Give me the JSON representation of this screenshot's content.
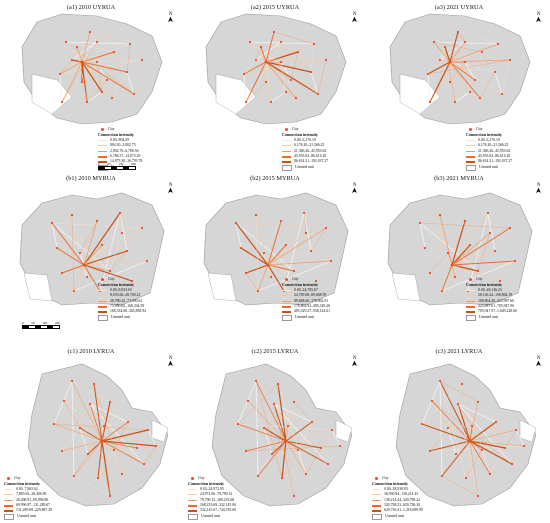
{
  "colors": {
    "region_fill": "#d6d6d6",
    "region_stroke": "#9a9a9a",
    "white_area": "#ffffff",
    "city_dot": "#e94f1f",
    "level1": "#fde6d0",
    "level2": "#fbc79b",
    "level3": "#f79a5c",
    "level4": "#ee6b2c",
    "level5": "#c94f12"
  },
  "icons": {
    "north_arrow": "north-arrow-icon",
    "city": "city-dot-icon"
  },
  "common": {
    "north_label": "N",
    "city_label": "City",
    "legend_title": "Connection intensity",
    "unrated_label": "Unrated unit"
  },
  "panels": [
    {
      "title": "(a1) 2010  UYRUA",
      "style": "upper",
      "legend": [
        "0.00–804.29",
        "804.30–2,802.75",
        "2,802.76–6,786.56",
        "6,786.57–14,073.29",
        "14,073.30–36,793.78"
      ],
      "scale_ticks": [
        "0",
        "65",
        "130",
        "260"
      ]
    },
    {
      "title": "(a2) 2015  UYRUA",
      "style": "upper",
      "legend": [
        "0.00–6,176.19",
        "6,176.20–21,366.25",
        "21,366.26–45,953.62",
        "45,953.63–86,614.20",
        "86,614.21–192,037.27"
      ]
    },
    {
      "title": "(a3) 2021  UYRUA",
      "style": "upper",
      "legend": [
        "0.00–6,176.19",
        "6,176.20–21,366.25",
        "21,366.26–45,953.62",
        "45,953.63–86,614.20",
        "86,614.21–192,037.27"
      ]
    },
    {
      "title": "(b1) 2010  MYRUA",
      "style": "middle",
      "legend": [
        "0.00–8,033.65",
        "8,033.66–28,780.21",
        "28,780.22–73,990.61",
        "73,990.62–168,334.59",
        "168,334.60–365,858.92"
      ],
      "scale_ticks": [
        "0",
        "50",
        "100",
        "200"
      ]
    },
    {
      "title": "(b2) 2015  MYRUA",
      "style": "middle",
      "legend": [
        "0.00–24,785.67",
        "24,785.68–89,668.59",
        "89,668.60–178,802.91",
        "178,802.92–485,329.26",
        "485,329.27–938,144.61"
      ]
    },
    {
      "title": "(b3) 2021  MYRUA",
      "style": "middle",
      "legend": [
        "0.00–28,146.23",
        "28,146.24–108,864.19",
        "108,864.20–323,987.60",
        "323,987.61–705,947.96",
        "705,947.97–1,649,228.66"
      ]
    },
    {
      "title": "(c1) 2010  LYRUA",
      "style": "lower",
      "legend": [
        "0.00–7,865.62",
        "7,865.63–28,406.90",
        "28,406.91–69,996.86",
        "69,996.87–131,289.67",
        "131,289.68–229,887.28"
      ]
    },
    {
      "title": "(c2) 2015  LYRUA",
      "style": "lower",
      "legend": [
        "0.03–24,972.05",
        "24,972.06–79,790.12",
        "79,790.13–168,233.68",
        "168,233.69–332,145.06",
        "332,145.07–744,535.69"
      ]
    },
    {
      "title": "(c3) 2021  LYRUA",
      "style": "lower",
      "legend": [
        "0.00–38,930.83",
        "38,930.84–138,214.43",
        "138,214.44–320,798.22",
        "320,798.23–629,736.30",
        "629,736.31–1,318,699.99"
      ]
    }
  ]
}
